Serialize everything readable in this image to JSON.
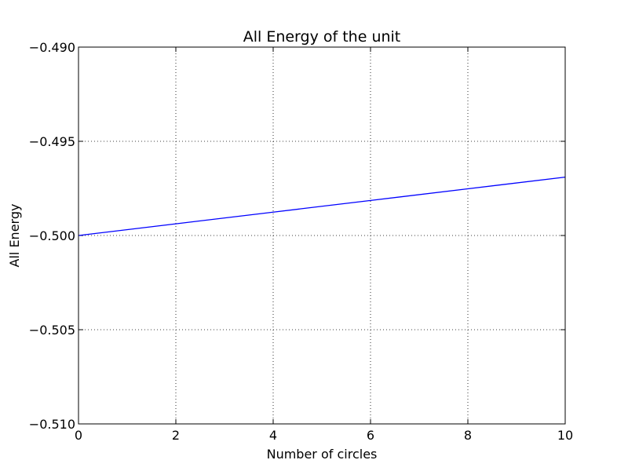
{
  "chart_data": {
    "type": "line",
    "title": "All Energy of the unit",
    "xlabel": "Number of circles",
    "ylabel": "All Energy",
    "xlim": [
      0,
      10
    ],
    "ylim": [
      -0.51,
      -0.49
    ],
    "xticks": [
      0,
      2,
      4,
      6,
      8,
      10
    ],
    "xtick_labels": [
      "0",
      "2",
      "4",
      "6",
      "8",
      "10"
    ],
    "yticks": [
      -0.51,
      -0.505,
      -0.5,
      -0.495,
      -0.49
    ],
    "ytick_labels": [
      "−0.510",
      "−0.505",
      "−0.500",
      "−0.495",
      "−0.490"
    ],
    "grid": true,
    "series": [
      {
        "color": "#0000ff",
        "x": [
          0,
          2,
          4,
          6,
          8,
          10
        ],
        "y": [
          -0.5,
          -0.49938,
          -0.49876,
          -0.49814,
          -0.49752,
          -0.4969
        ]
      }
    ]
  }
}
